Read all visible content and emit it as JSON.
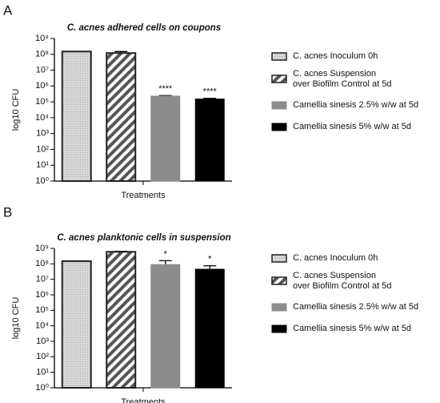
{
  "chart_data": [
    {
      "type": "bar",
      "panel": "A",
      "title": "C. acnes adhered cells on coupons",
      "xlabel": "Treatments",
      "ylabel": "log10 CFU",
      "log_scale": true,
      "ylim": [
        1,
        1000000000
      ],
      "yticks": [
        {
          "value": 1,
          "label": "10⁰"
        },
        {
          "value": 10,
          "label": "10¹"
        },
        {
          "value": 100,
          "label": "10²"
        },
        {
          "value": 1000,
          "label": "10³"
        },
        {
          "value": 10000,
          "label": "10⁴"
        },
        {
          "value": 100000,
          "label": "10⁵"
        },
        {
          "value": 1000000,
          "label": "10⁶"
        },
        {
          "value": 10000000,
          "label": "10⁷"
        },
        {
          "value": 100000000,
          "label": "10⁸"
        },
        {
          "value": 1000000000,
          "label": "10⁹"
        }
      ],
      "series": [
        {
          "name": "C. acnes Inoculum 0h",
          "color": "#b5b5b5",
          "pattern": "dots",
          "values": [
            150000000
          ]
        },
        {
          "name": "C. acnes Suspension\nover Biofilm Control at 5d",
          "color": "#555555",
          "pattern": "stripes",
          "values": [
            120000000
          ],
          "errors": [
            30000000
          ]
        },
        {
          "name": "Camellia sinesis  2.5% w/w at 5d",
          "color": "#8c8c8c",
          "values": [
            230000
          ],
          "errors": [
            20000
          ],
          "annotation": "****"
        },
        {
          "name": "Camellia sinesis  5% w/w at 5d",
          "color": "#000000",
          "values": [
            150000
          ],
          "errors": [
            15000
          ],
          "annotation": "****"
        }
      ]
    },
    {
      "type": "bar",
      "panel": "B",
      "title": "C. acnes planktonic cells in suspension",
      "xlabel": "Treatments",
      "ylabel": "log10 CFU",
      "log_scale": true,
      "ylim": [
        1,
        1000000000
      ],
      "yticks": [
        {
          "value": 1,
          "label": "10⁰"
        },
        {
          "value": 10,
          "label": "10¹"
        },
        {
          "value": 100,
          "label": "10²"
        },
        {
          "value": 1000,
          "label": "10³"
        },
        {
          "value": 10000,
          "label": "10⁴"
        },
        {
          "value": 100000,
          "label": "10⁵"
        },
        {
          "value": 1000000,
          "label": "10⁶"
        },
        {
          "value": 10000000,
          "label": "10⁷"
        },
        {
          "value": 100000000,
          "label": "10⁸"
        },
        {
          "value": 1000000000,
          "label": "10⁹"
        }
      ],
      "series": [
        {
          "name": "C. acnes Inoculum 0h",
          "color": "#b5b5b5",
          "pattern": "dots",
          "values": [
            150000000
          ]
        },
        {
          "name": "C. acnes Suspension\nover Biofilm Control at 5d",
          "color": "#555555",
          "pattern": "stripes",
          "values": [
            600000000
          ],
          "errors": [
            50000000
          ]
        },
        {
          "name": "Camellia sinesis  2.5% w/w at 5d",
          "color": "#8c8c8c",
          "values": [
            90000000
          ],
          "errors": [
            70000000
          ],
          "annotation": "*"
        },
        {
          "name": "Camellia sinesis  5% w/w at 5d",
          "color": "#000000",
          "values": [
            45000000
          ],
          "errors": [
            30000000
          ],
          "annotation": "*"
        }
      ]
    }
  ]
}
